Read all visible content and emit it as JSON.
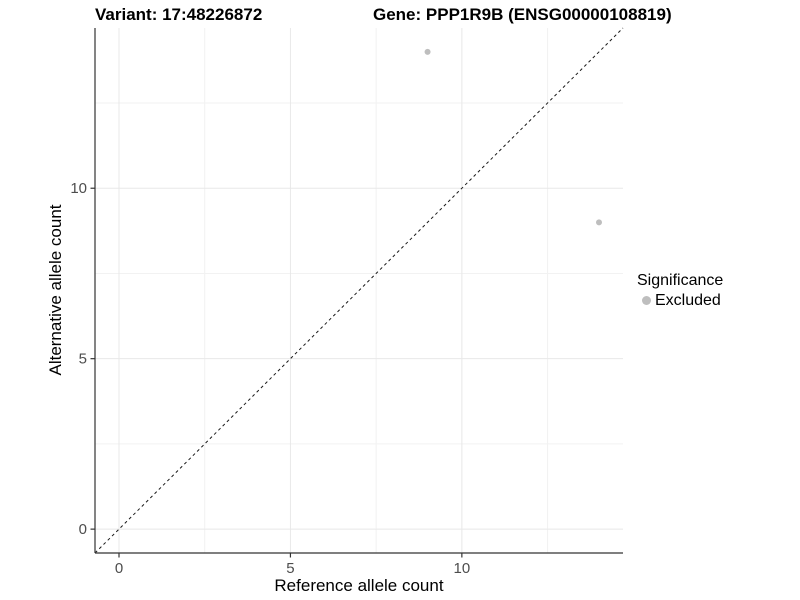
{
  "header": {
    "variant_title": "Variant: 17:48226872",
    "gene_title": "Gene: PPP1R9B (ENSG00000108819)"
  },
  "legend": {
    "title": "Significance",
    "items": [
      {
        "label": "Excluded",
        "color": "#bebebe"
      }
    ]
  },
  "chart_data": {
    "type": "scatter",
    "title": "Variant: 17:48226872   Gene: PPP1R9B (ENSG00000108819)",
    "xlabel": "Reference allele count",
    "ylabel": "Alternative allele count",
    "x_ticks": [
      0,
      5,
      10
    ],
    "x_tick_labels": [
      "0",
      "5",
      "10"
    ],
    "y_ticks": [
      0,
      5,
      10
    ],
    "y_tick_labels": [
      "0",
      "5",
      "10"
    ],
    "x_minor_ticks": [
      2.5,
      7.5,
      12.5
    ],
    "y_minor_ticks": [
      2.5,
      7.5,
      12.5
    ],
    "xlim": [
      -0.7,
      14.7
    ],
    "ylim": [
      -0.7,
      14.7
    ],
    "grid": true,
    "legend_position": "right",
    "series": [
      {
        "name": "Excluded",
        "points": [
          {
            "x": 9,
            "y": 14
          },
          {
            "x": 14,
            "y": 9
          }
        ]
      }
    ],
    "reference_line": {
      "type": "identity",
      "style": "dashed"
    }
  },
  "colors": {
    "point": "#bebebe",
    "grid_major": "#e8e8e8",
    "grid_minor": "#f2f2f2",
    "axis_line": "#333333",
    "tick_text": "#4d4d4d",
    "reference_line": "#1a1a1a"
  }
}
